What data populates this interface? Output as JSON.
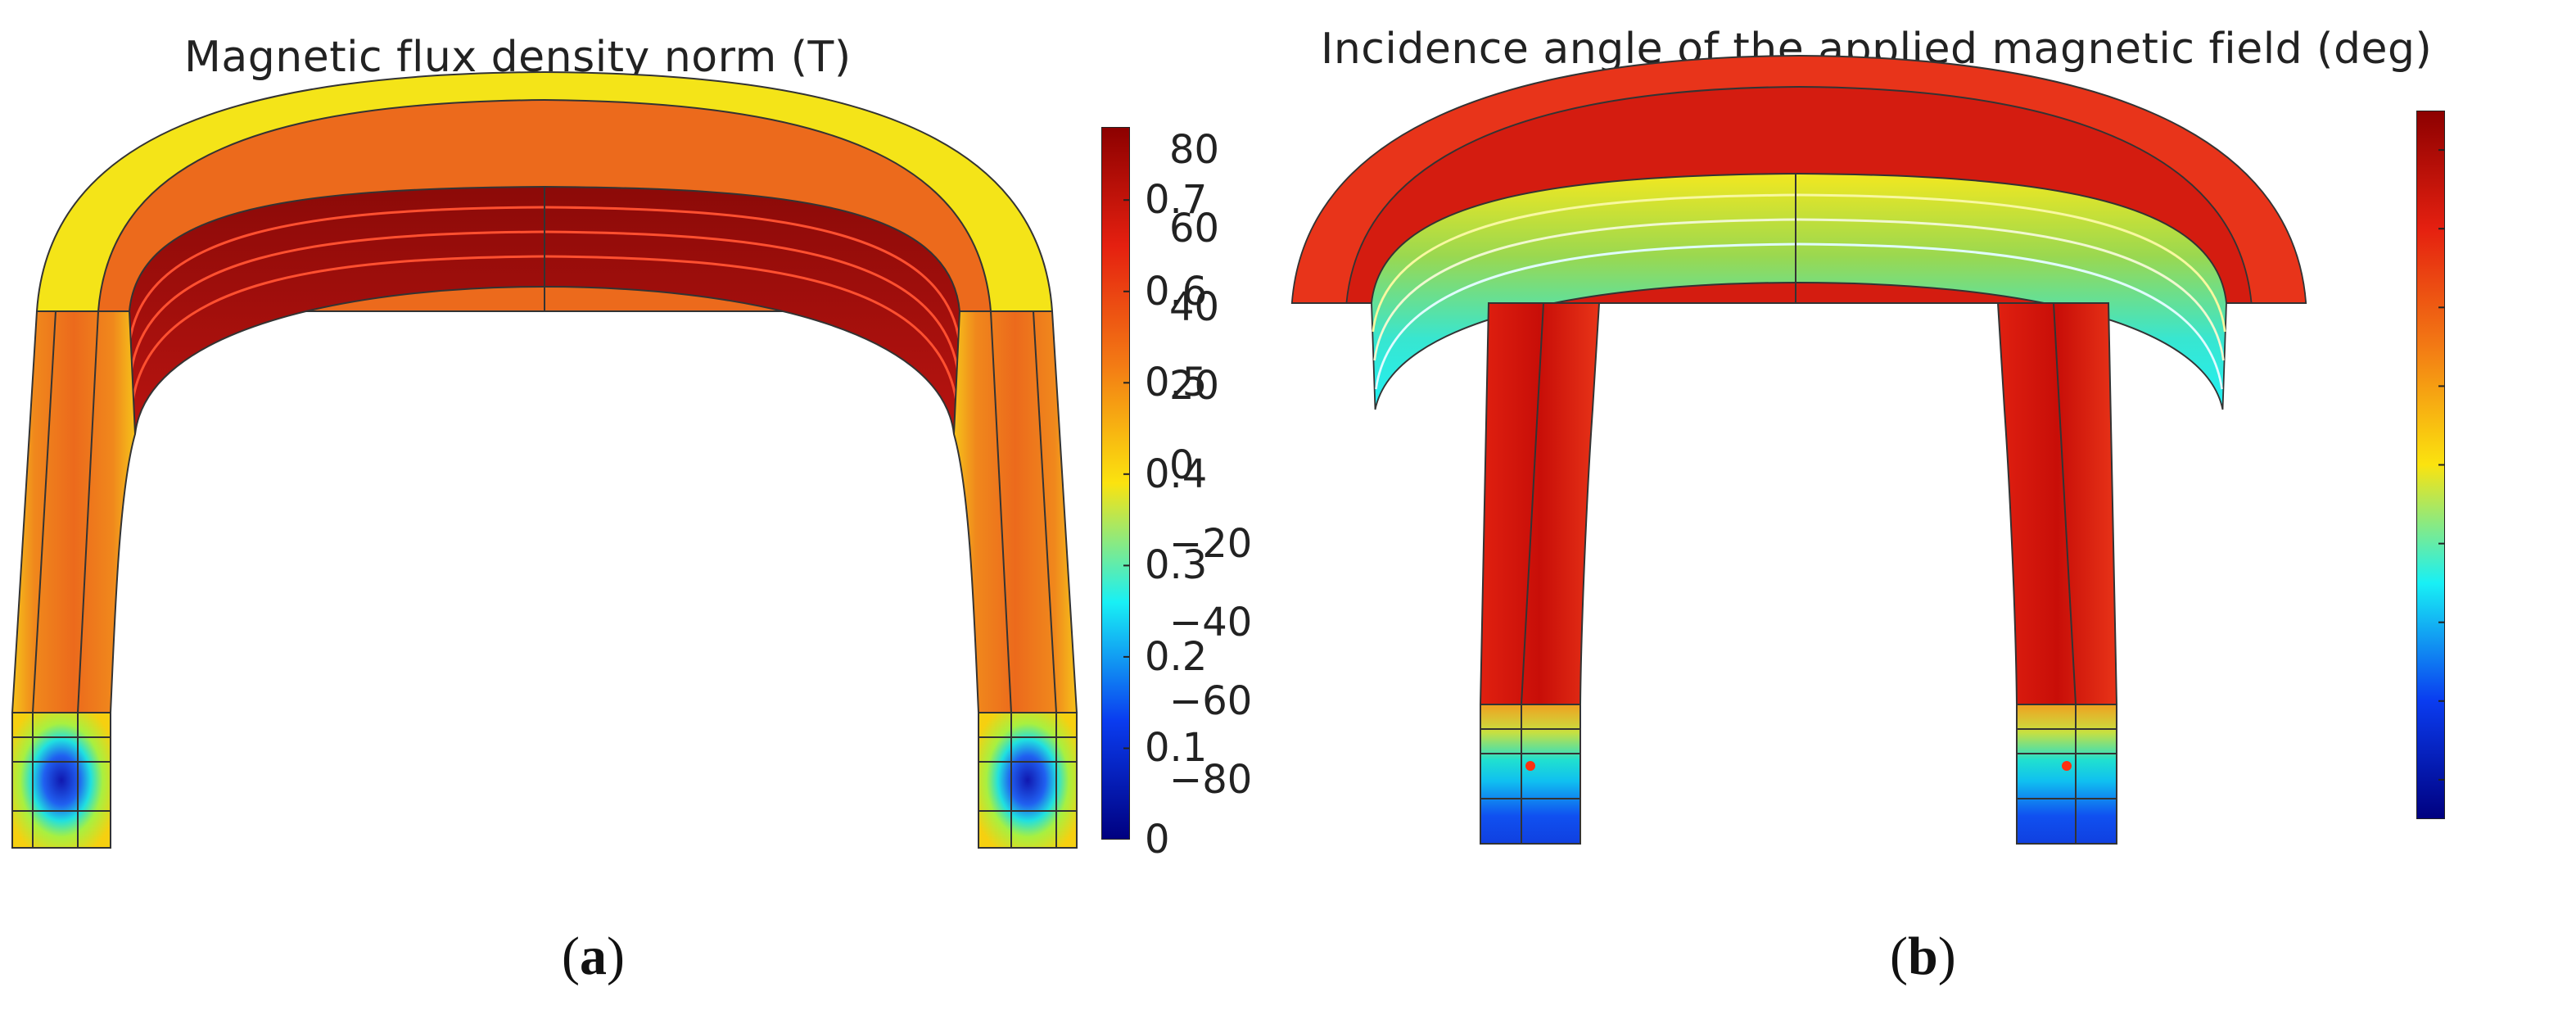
{
  "panels": [
    {
      "id": "a",
      "title": "Magnetic flux density norm (T)",
      "caption_letter": "a",
      "colorbar": {
        "ticks": [
          "0",
          "0.1",
          "0.2",
          "0.3",
          "0.4",
          "0.5",
          "0.6",
          "0.7"
        ],
        "tick_values": [
          0,
          0.1,
          0.2,
          0.3,
          0.4,
          0.5,
          0.6,
          0.7
        ],
        "min": 0,
        "max": 0.78,
        "colormap": "rainbow"
      }
    },
    {
      "id": "b",
      "title": "Incidence angle of the applied magnetic field (deg)",
      "caption_letter": "b",
      "colorbar": {
        "ticks": [
          "−80",
          "−60",
          "−40",
          "−20",
          "0",
          "20",
          "40",
          "60",
          "80"
        ],
        "tick_values": [
          -80,
          -60,
          -40,
          -20,
          0,
          20,
          40,
          60,
          80
        ],
        "min": -90,
        "max": 90,
        "colormap": "rainbow"
      }
    }
  ],
  "colors": {
    "dark_red": "#8c0000",
    "red": "#e52010",
    "orange": "#f37a14",
    "yellow": "#fbe30f",
    "cyan": "#18f0f5",
    "blue": "#0a3cf0",
    "dark_blue": "#00007f"
  }
}
